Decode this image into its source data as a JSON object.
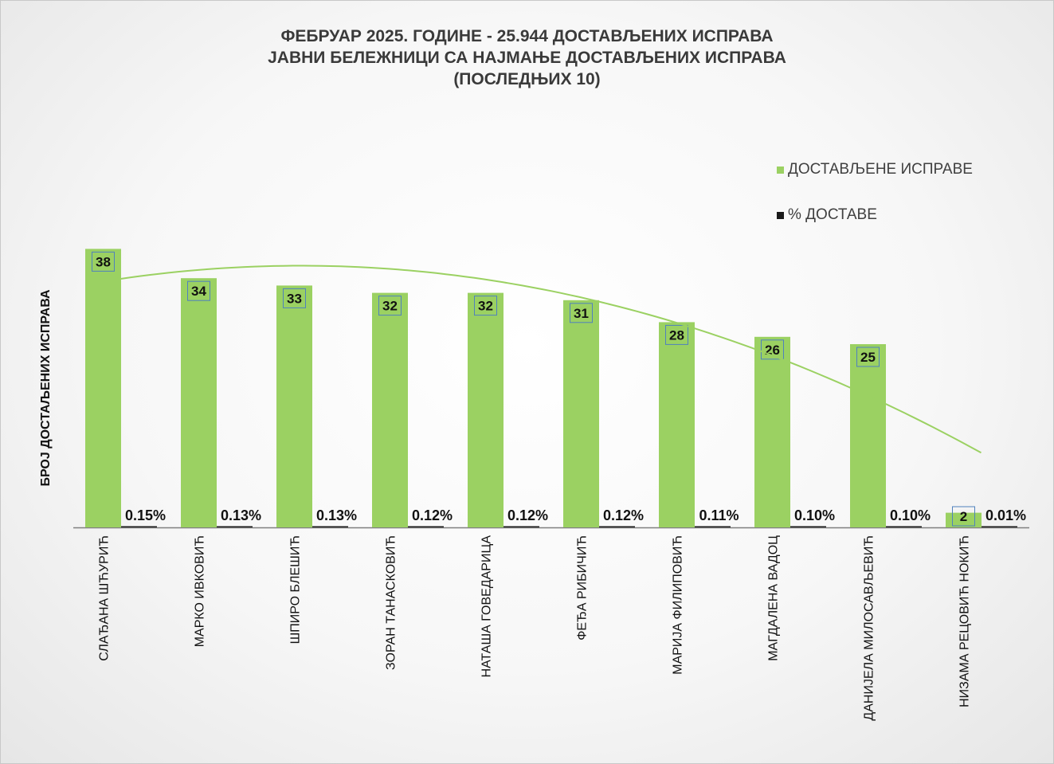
{
  "chart_data": {
    "type": "bar",
    "title": [
      "ФЕБРУАР 2025. ГОДИНЕ - 25.944 ДОСТАВЉЕНИХ ИСПРАВА",
      "ЈАВНИ БЕЛЕЖНИЦИ СА НАЈМАЊЕ ДОСТАВЉЕНИХ ИСПРАВА",
      "(ПОСЛЕДЊИХ 10)"
    ],
    "ylabel": "БРОЈ ДОСТАЉЕНИХ ИСПРАВА",
    "xlabel": "",
    "categories": [
      "СЛАЂАНА ШЋУРИЋ",
      "МАРКО ИВКОВИЋ",
      "ШПИРО БЛЕШИЋ",
      "ЗОРАН ТАНАСКОВИЋ",
      "НАТАША ГОВЕДАРИЦА",
      "ФЕЂА РИБИЧИЋ",
      "МАРИЈА ФИЛИПОВИЋ",
      "МАГДАЛЕНА ВАДОЦ",
      "ДАНИЈЕЛА МИЛОСАВЉЕВИЋ",
      "НИЗАМА РЕЦОВИЋ НОКИЋ"
    ],
    "series": [
      {
        "name": "ДОСТАВЉЕНЕ ИСПРАВЕ",
        "color": "#9bd162",
        "values": [
          38,
          34,
          33,
          32,
          32,
          31,
          28,
          26,
          25,
          2
        ],
        "labels": [
          "38",
          "34",
          "33",
          "32",
          "32",
          "31",
          "28",
          "26",
          "25",
          "2"
        ]
      },
      {
        "name": "% ДОСТАВЕ",
        "color": "#1a1a1a",
        "values": [
          0.15,
          0.13,
          0.13,
          0.12,
          0.12,
          0.12,
          0.11,
          0.1,
          0.1,
          0.01
        ],
        "labels": [
          "0.15%",
          "0.13%",
          "0.13%",
          "0.12%",
          "0.12%",
          "0.12%",
          "0.11%",
          "0.10%",
          "0.10%",
          "0.01%"
        ]
      }
    ],
    "trendline": {
      "series": "ДОСТАВЉЕНЕ ИСПРАВЕ",
      "type": "polynomial",
      "color": "#9bd162"
    },
    "legend_position": "right",
    "grid": false
  }
}
